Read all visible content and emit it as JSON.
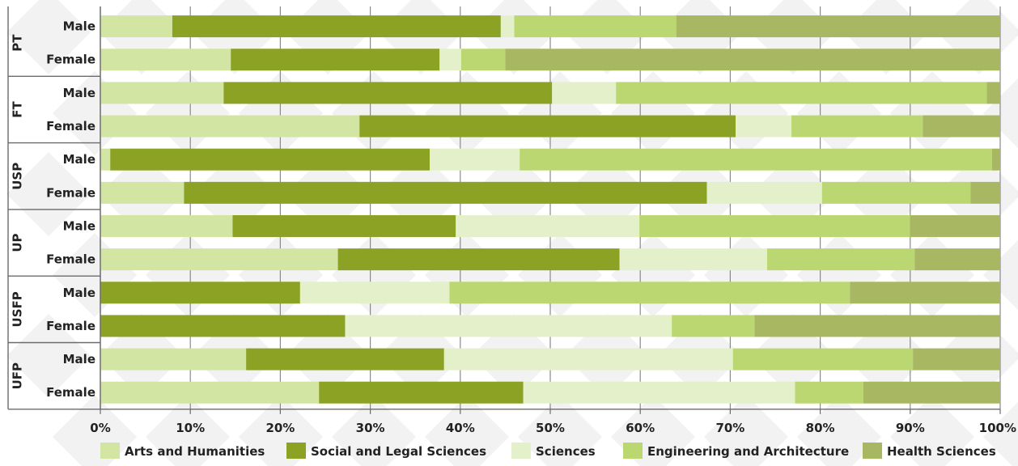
{
  "chart_data": {
    "type": "bar",
    "orientation": "horizontal",
    "stacked": "percent",
    "title": "",
    "xlabel": "",
    "ylabel": "",
    "xlim": [
      0,
      100
    ],
    "x_ticks": [
      "0%",
      "10%",
      "20%",
      "30%",
      "40%",
      "50%",
      "60%",
      "70%",
      "80%",
      "90%",
      "100%"
    ],
    "grid": "vertical",
    "legend_position": "bottom",
    "groups": [
      {
        "label": "PT",
        "rows": [
          {
            "label": "Male",
            "values": [
              8.0,
              36.5,
              1.5,
              18.0,
              36.0
            ]
          },
          {
            "label": "Female",
            "values": [
              14.5,
              23.2,
              2.4,
              4.9,
              55.0
            ]
          }
        ]
      },
      {
        "label": "FT",
        "rows": [
          {
            "label": "Male",
            "values": [
              13.7,
              36.5,
              7.1,
              41.2,
              1.5
            ]
          },
          {
            "label": "Female",
            "values": [
              28.8,
              41.8,
              6.2,
              14.6,
              8.6
            ]
          }
        ]
      },
      {
        "label": "USP",
        "rows": [
          {
            "label": "Male",
            "values": [
              1.1,
              35.5,
              10.0,
              52.5,
              0.9
            ]
          },
          {
            "label": "Female",
            "values": [
              9.3,
              58.1,
              12.8,
              16.5,
              3.3
            ]
          }
        ]
      },
      {
        "label": "UP",
        "rows": [
          {
            "label": "Male",
            "values": [
              14.7,
              24.8,
              20.4,
              30.1,
              10.0
            ]
          },
          {
            "label": "Female",
            "values": [
              26.4,
              31.3,
              16.4,
              16.4,
              9.5
            ]
          }
        ]
      },
      {
        "label": "USFP",
        "rows": [
          {
            "label": "Male",
            "values": [
              0.0,
              22.2,
              16.6,
              44.5,
              16.7
            ]
          },
          {
            "label": "Female",
            "values": [
              0.0,
              27.2,
              36.3,
              9.2,
              27.3
            ]
          }
        ]
      },
      {
        "label": "UFP",
        "rows": [
          {
            "label": "Male",
            "values": [
              16.2,
              22.0,
              32.1,
              20.0,
              9.7
            ]
          },
          {
            "label": "Female",
            "values": [
              24.3,
              22.7,
              30.2,
              7.6,
              15.2
            ]
          }
        ]
      }
    ],
    "series": [
      {
        "name": "Arts and Humanities",
        "color": "#d2e5a2"
      },
      {
        "name": "Social and Legal Sciences",
        "color": "#8ba224"
      },
      {
        "name": "Sciences",
        "color": "#e3f0c9"
      },
      {
        "name": "Engineering and Architecture",
        "color": "#bbd772"
      },
      {
        "name": "Health  Sciences",
        "color": "#a8b862"
      }
    ]
  }
}
